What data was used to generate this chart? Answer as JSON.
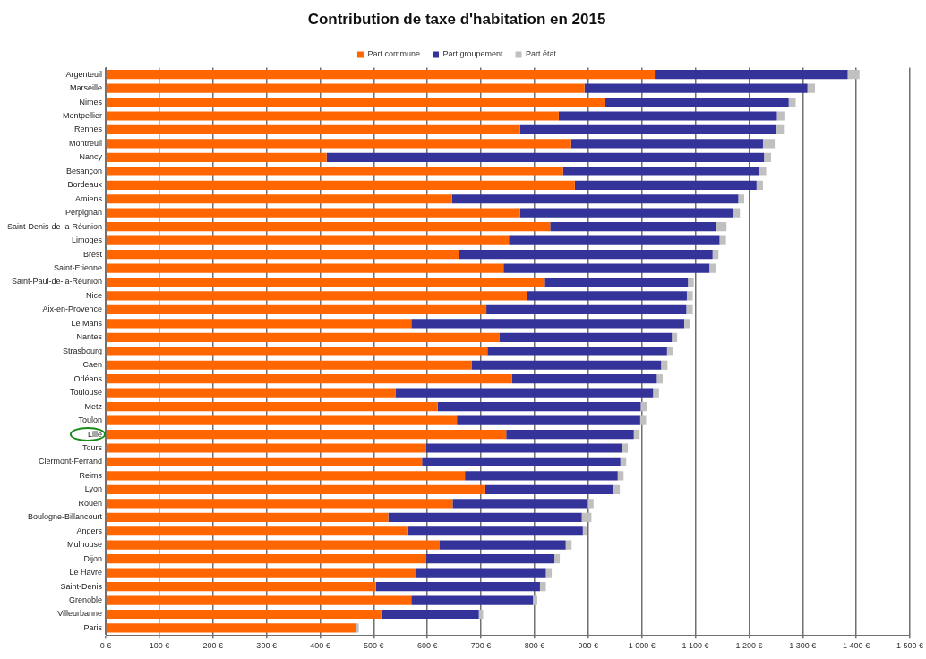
{
  "chart_data": {
    "type": "bar",
    "orientation": "horizontal",
    "stacked": true,
    "title": "Contribution de taxe d'habitation en 2015",
    "categories": [
      "Argenteuil",
      "Marseille",
      "Nimes",
      "Montpellier",
      "Rennes",
      "Montreuil",
      "Nancy",
      "Besançon",
      "Bordeaux",
      "Amiens",
      "Perpignan",
      "Saint-Denis-de-la-Réunion",
      "Limoges",
      "Brest",
      "Saint-Etienne",
      "Saint-Paul-de-la-Réunion",
      "Nice",
      "Aix-en-Provence",
      "Le Mans",
      "Nantes",
      "Strasbourg",
      "Caen",
      "Orléans",
      "Toulouse",
      "Metz",
      "Toulon",
      "Lille",
      "Tours",
      "Clermont-Ferrand",
      "Reims",
      "Lyon",
      "Rouen",
      "Boulogne-Billancourt",
      "Angers",
      "Mulhouse",
      "Dijon",
      "Le Havre",
      "Saint-Denis",
      "Grenoble",
      "Villeurbanne",
      "Paris"
    ],
    "series": [
      {
        "name": "Part commune",
        "color": "#ff6600",
        "values": [
          1024,
          893,
          932,
          845,
          773,
          868,
          412,
          853,
          875,
          646,
          773,
          829,
          752,
          659,
          742,
          819,
          785,
          710,
          570,
          734,
          712,
          683,
          758,
          541,
          619,
          655,
          747,
          598,
          590,
          670,
          708,
          647,
          527,
          564,
          622,
          598,
          578,
          504,
          570,
          514,
          467
        ]
      },
      {
        "name": "Part groupement",
        "color": "#333399",
        "values": [
          360,
          416,
          342,
          407,
          478,
          358,
          816,
          366,
          339,
          534,
          398,
          309,
          393,
          473,
          384,
          267,
          299,
          373,
          509,
          322,
          335,
          353,
          270,
          480,
          379,
          342,
          238,
          365,
          370,
          285,
          239,
          252,
          361,
          326,
          236,
          239,
          243,
          306,
          227,
          182,
          0
        ]
      },
      {
        "name": "Part état",
        "color": "#c0c0c0",
        "values": [
          22,
          14,
          13,
          14,
          14,
          22,
          13,
          13,
          12,
          11,
          12,
          20,
          12,
          11,
          12,
          11,
          11,
          12,
          11,
          10,
          11,
          12,
          11,
          11,
          12,
          11,
          11,
          11,
          11,
          11,
          12,
          11,
          18,
          8,
          11,
          10,
          11,
          11,
          8,
          8,
          5
        ]
      }
    ],
    "xlim": [
      0,
      1500
    ],
    "xticks": [
      {
        "value": 0,
        "label": "0 €"
      },
      {
        "value": 100,
        "label": "100 €"
      },
      {
        "value": 200,
        "label": "200 €"
      },
      {
        "value": 300,
        "label": "300 €"
      },
      {
        "value": 400,
        "label": "400 €"
      },
      {
        "value": 500,
        "label": "500 €"
      },
      {
        "value": 600,
        "label": "600 €"
      },
      {
        "value": 700,
        "label": "700 €"
      },
      {
        "value": 800,
        "label": "800 €"
      },
      {
        "value": 900,
        "label": "900 €"
      },
      {
        "value": 1000,
        "label": "1 000 €"
      },
      {
        "value": 1100,
        "label": "1 100 €"
      },
      {
        "value": 1200,
        "label": "1 200 €"
      },
      {
        "value": 1300,
        "label": "1 300 €"
      },
      {
        "value": 1400,
        "label": "1 400 €"
      },
      {
        "value": 1500,
        "label": "1 500 €"
      }
    ],
    "grid": "x",
    "legend": "top"
  }
}
